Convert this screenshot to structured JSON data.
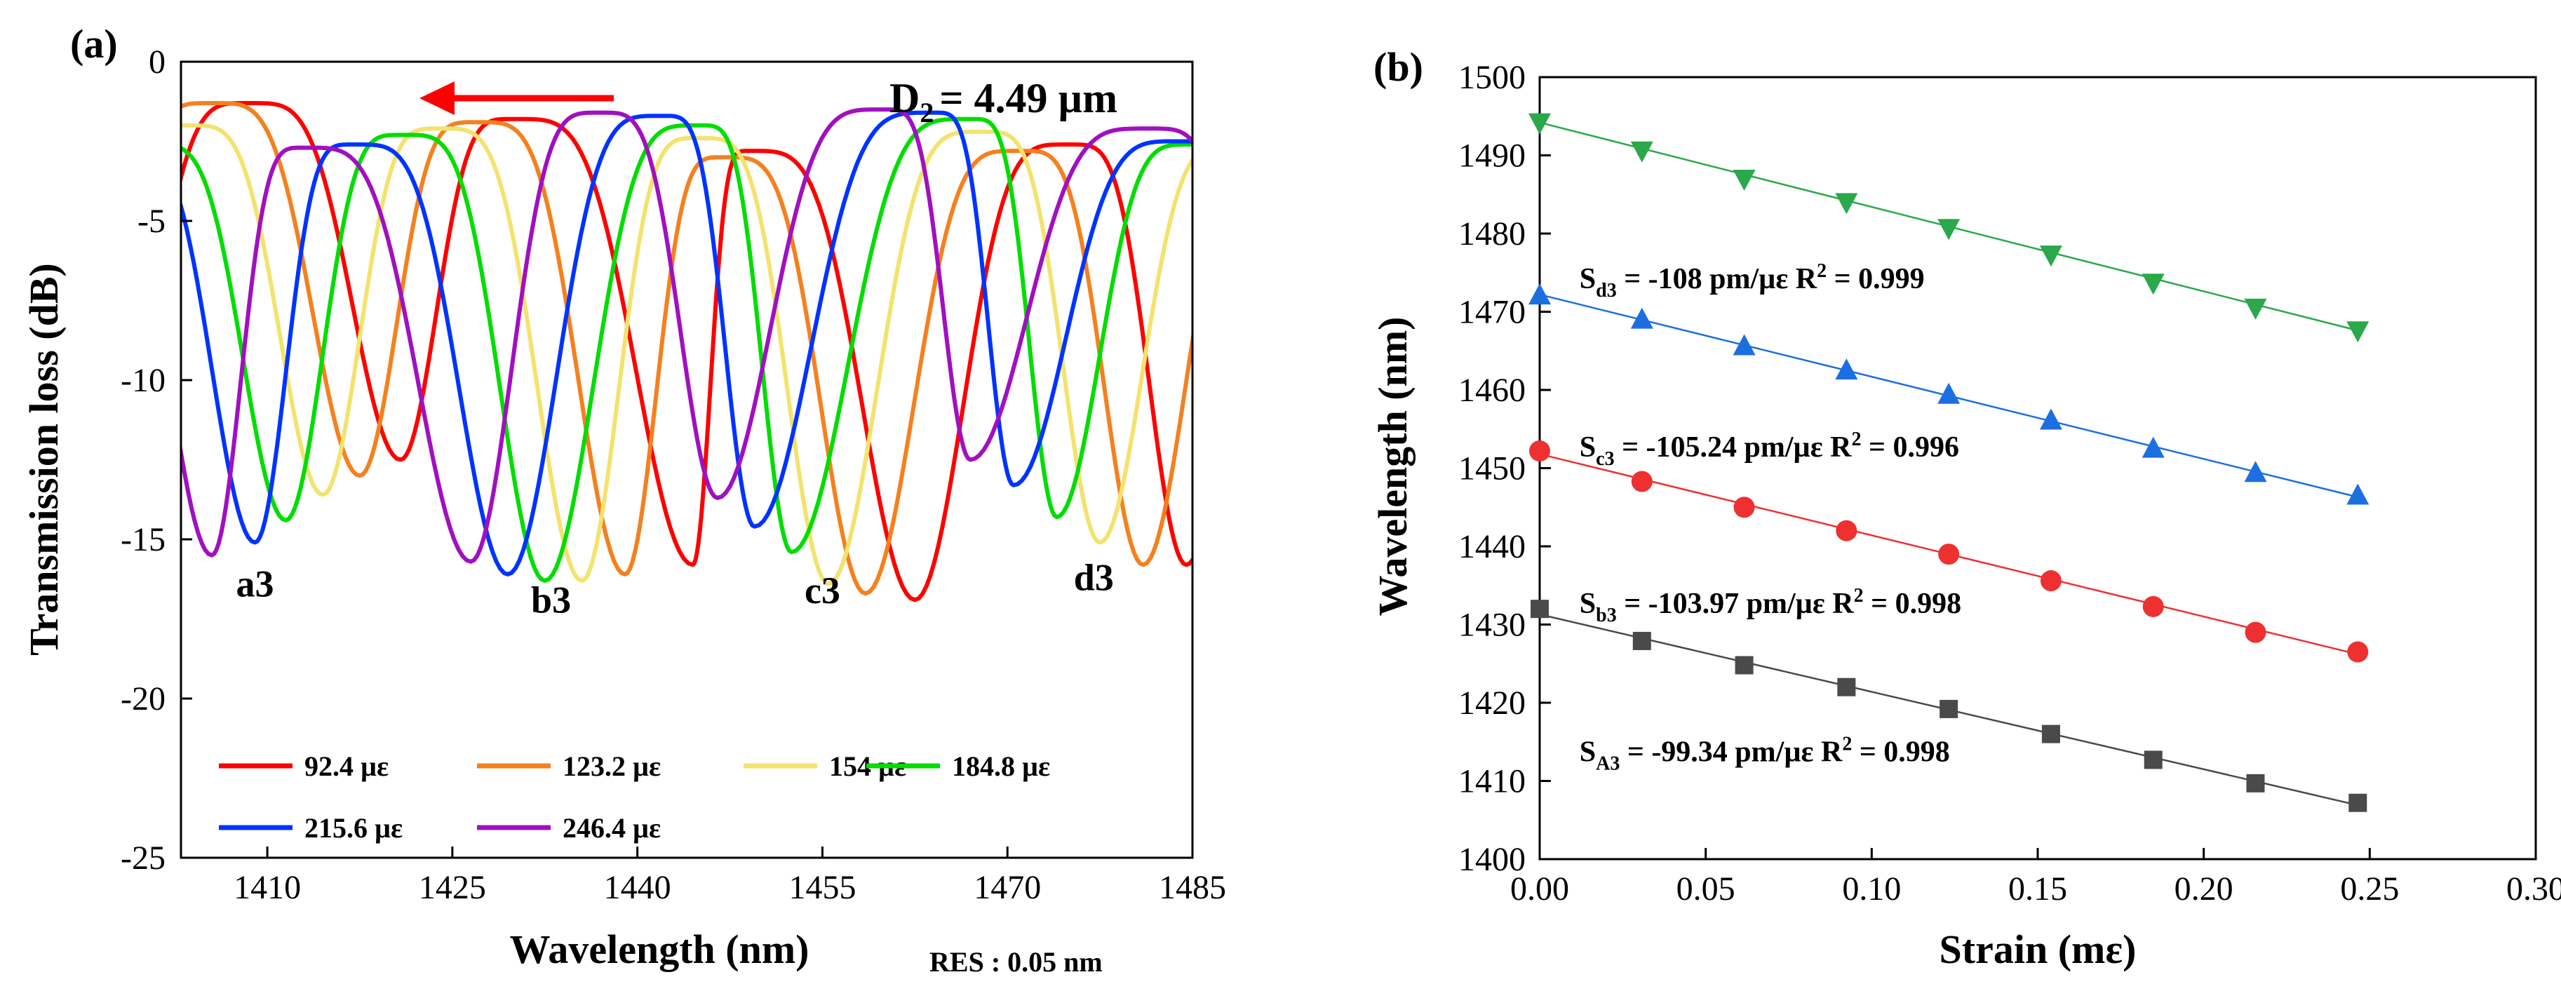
{
  "chart_data": [
    {
      "panel_label": "(a)",
      "type": "line",
      "xlabel": "Wavelength (nm)",
      "ylabel": "Transmission loss (dB)",
      "xlim": [
        1403,
        1485
      ],
      "ylim": [
        -25,
        0
      ],
      "xticks": [
        1410,
        1425,
        1440,
        1455,
        1470,
        1485
      ],
      "yticks": [
        0,
        -5,
        -10,
        -15,
        -20,
        -25
      ],
      "annotation_main": "D",
      "annotation_sub": "2",
      "annotation_value": "= 4.49 µm",
      "resolution_label": "RES : 0.05 nm",
      "arrow_direction": "left",
      "dip_labels": [
        "a3",
        "b3",
        "c3",
        "d3"
      ],
      "dip_label_positions": [
        {
          "x": 1409,
          "y": -16.8
        },
        {
          "x": 1433,
          "y": -17.3
        },
        {
          "x": 1455,
          "y": -17.0
        },
        {
          "x": 1477,
          "y": -16.6
        }
      ],
      "series": [
        {
          "name": "92.4 µε",
          "color": "#ff0000",
          "dips": [
            [
              1420.8,
              -12.5
            ],
            [
              1444.5,
              -15.8
            ],
            [
              1462.5,
              -16.9
            ],
            [
              1484.5,
              -15.8
            ]
          ],
          "peaks": [
            [
              1408.5,
              -1.3
            ],
            [
              1430,
              -1.8
            ],
            [
              1449,
              -2.8
            ],
            [
              1475,
              -2.6
            ]
          ]
        },
        {
          "name": "123.2 µε",
          "color": "#f5801e",
          "dips": [
            [
              1417.5,
              -13.0
            ],
            [
              1439.0,
              -16.1
            ],
            [
              1458.5,
              -16.7
            ],
            [
              1481.0,
              -15.8
            ]
          ],
          "peaks": [
            [
              1405.5,
              -1.3
            ],
            [
              1427,
              -1.9
            ],
            [
              1447,
              -3.0
            ],
            [
              1471,
              -2.8
            ]
          ]
        },
        {
          "name": "154 µε",
          "color": "#f3e36e",
          "dips": [
            [
              1414.5,
              -13.6
            ],
            [
              1435.5,
              -16.3
            ],
            [
              1455.5,
              -16.4
            ],
            [
              1477.5,
              -15.1
            ]
          ],
          "peaks": [
            [
              1403.5,
              -2.0
            ],
            [
              1424,
              -2.1
            ],
            [
              1445,
              -2.4
            ],
            [
              1468,
              -2.2
            ]
          ]
        },
        {
          "name": "184.8 µε",
          "color": "#00dd00",
          "dips": [
            [
              1411.5,
              -14.4
            ],
            [
              1432.5,
              -16.3
            ],
            [
              1452.5,
              -15.4
            ],
            [
              1474.0,
              -14.3
            ]
          ],
          "peaks": [
            [
              1421,
              -2.3
            ],
            [
              1445,
              -2.0
            ],
            [
              1467,
              -1.8
            ]
          ]
        },
        {
          "name": "215.6 µε",
          "color": "#0033ff",
          "dips": [
            [
              1409.0,
              -15.1
            ],
            [
              1429.5,
              -16.1
            ],
            [
              1449.5,
              -14.6
            ],
            [
              1470.5,
              -13.3
            ]
          ],
          "peaks": [
            [
              1417,
              -2.6
            ],
            [
              1442,
              -1.7
            ],
            [
              1464,
              -1.6
            ],
            [
              1484,
              -2.5
            ]
          ]
        },
        {
          "name": "246.4 µε",
          "color": "#a010c0",
          "dips": [
            [
              1405.5,
              -15.5
            ],
            [
              1426.5,
              -15.7
            ],
            [
              1446.5,
              -13.7
            ],
            [
              1467.0,
              -12.5
            ]
          ],
          "peaks": [
            [
              1413,
              -2.7
            ],
            [
              1437,
              -1.6
            ],
            [
              1460,
              -1.5
            ],
            [
              1481.5,
              -2.1
            ]
          ]
        }
      ]
    },
    {
      "panel_label": "(b)",
      "type": "scatter",
      "xlabel": "Strain (mε)",
      "ylabel": "Wavelength (nm)",
      "xlim": [
        0,
        0.3
      ],
      "ylim": [
        1400,
        1500
      ],
      "xtick_labels": [
        "0.00",
        "0.05",
        "0.10",
        "0.15",
        "0.20",
        "0.25",
        "0.30"
      ],
      "xticks": [
        0,
        0.05,
        0.1,
        0.15,
        0.2,
        0.25,
        0.3
      ],
      "yticks": [
        1400,
        1410,
        1420,
        1430,
        1440,
        1450,
        1460,
        1470,
        1480,
        1490,
        1500
      ],
      "x": [
        0,
        0.0308,
        0.0616,
        0.0924,
        0.1232,
        0.154,
        0.1848,
        0.2156,
        0.2464
      ],
      "series": [
        {
          "name": "A3",
          "marker": "square",
          "color": "#4a4a4a",
          "values": [
            1432.0,
            1427.9,
            1424.8,
            1422.0,
            1419.2,
            1416.0,
            1412.7,
            1409.7,
            1407.2
          ],
          "fit": [
            1431.3,
            1406.9
          ],
          "label": "S",
          "label_sub": "A3",
          "label_rest": " = -99.34 pm/µε  R",
          "label_sup": "2",
          "label_end": " = 0.998",
          "label_pos": {
            "x": 0.012,
            "y": 1412.5
          }
        },
        {
          "name": "b3",
          "marker": "circle",
          "color": "#ee3030",
          "values": [
            1452.2,
            1448.3,
            1445.0,
            1442.0,
            1439.0,
            1435.6,
            1432.3,
            1429.0,
            1426.5
          ],
          "fit": [
            1451.8,
            1426.2
          ],
          "label": "S",
          "label_sub": "b3",
          "label_rest": " = -103.97 pm/µε  R",
          "label_sup": "2",
          "label_end": " = 0.998",
          "label_pos": {
            "x": 0.012,
            "y": 1431.5
          }
        },
        {
          "name": "c3",
          "marker": "triangle-up",
          "color": "#1c6fe0",
          "values": [
            1472.1,
            1469.0,
            1465.6,
            1462.5,
            1459.4,
            1456.1,
            1452.5,
            1449.4,
            1446.5
          ],
          "fit": [
            1472.2,
            1446.3
          ],
          "label": "S",
          "label_sub": "c3",
          "label_rest": " = -105.24 pm/µε  R",
          "label_sup": "2",
          "label_end": " = 0.996",
          "label_pos": {
            "x": 0.012,
            "y": 1451.5
          }
        },
        {
          "name": "d3",
          "marker": "triangle-down",
          "color": "#2aa84a",
          "values": [
            1494.2,
            1490.6,
            1487.0,
            1484.0,
            1480.7,
            1477.3,
            1473.7,
            1470.5,
            1467.6
          ],
          "fit": [
            1494.2,
            1467.6
          ],
          "label": "S",
          "label_sub": "d3",
          "label_rest": " = -108 pm/µε  R",
          "label_sup": "2",
          "label_end": " = 0.999",
          "label_pos": {
            "x": 0.012,
            "y": 1473.0
          }
        }
      ]
    }
  ]
}
